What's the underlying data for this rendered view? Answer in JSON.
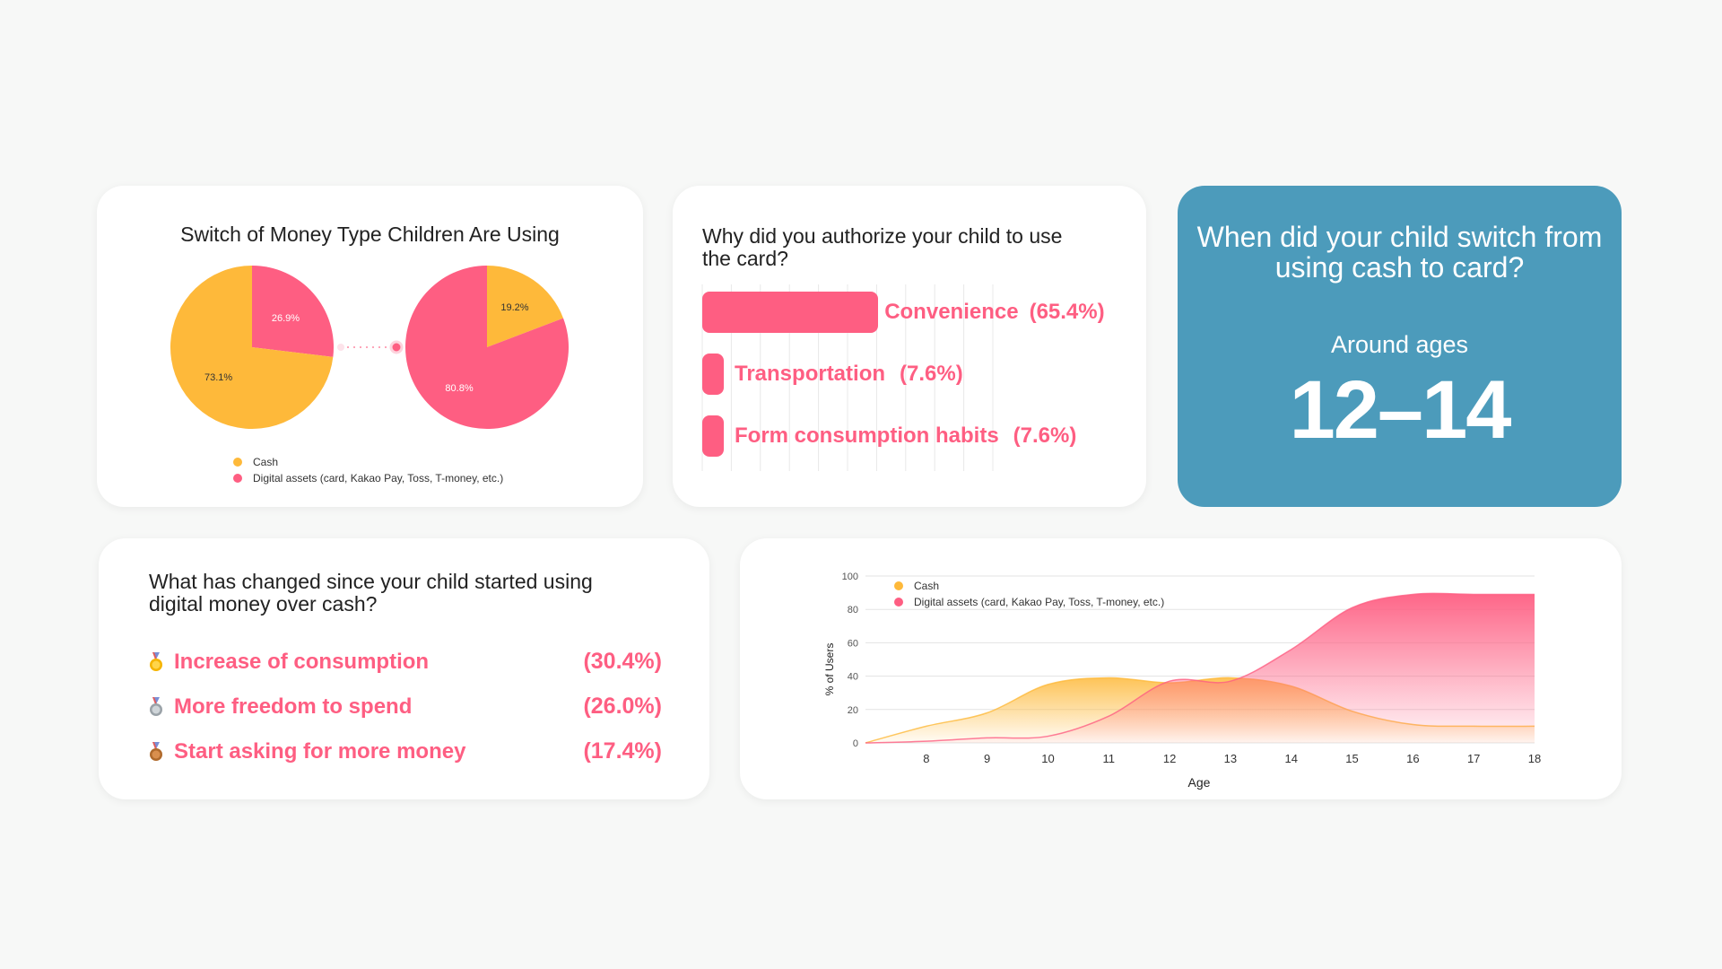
{
  "colors": {
    "cash": "#feb93a",
    "digital": "#fe5e82",
    "accent_blue": "#4c9bbb"
  },
  "pie_card": {
    "title": "Switch of Money Type Children Are Using",
    "legend": [
      {
        "label": "Cash",
        "color": "#feb93a"
      },
      {
        "label": "Digital assets (card, Kakao Pay, Toss, T-money, etc.)",
        "color": "#fe5e82"
      }
    ]
  },
  "reasons_card": {
    "title": "Why did you authorize your child to use the card?"
  },
  "switch_card": {
    "question": "When did your child switch from using cash to card?",
    "subtitle": "Around ages",
    "value": "12–14"
  },
  "changes_card": {
    "title": "What has changed since your child started using digital money over cash?",
    "items": [
      {
        "label": "Increase of consumption",
        "pct": "(30.4%)",
        "medal": "gold"
      },
      {
        "label": "More freedom to spend",
        "pct": "(26.0%)",
        "medal": "silver"
      },
      {
        "label": "Start asking for more money",
        "pct": "(17.4%)",
        "medal": "bronze"
      }
    ]
  },
  "chart_data": [
    {
      "type": "pie",
      "title": "Switch of Money Type Children Are Using (before)",
      "slices": [
        {
          "label": "Cash",
          "value": 73.1,
          "text": "73.1%"
        },
        {
          "label": "Digital assets (card, Kakao Pay, Toss, T-money, etc.)",
          "value": 26.9,
          "text": "26.9%"
        }
      ]
    },
    {
      "type": "pie",
      "title": "Switch of Money Type Children Are Using (after)",
      "slices": [
        {
          "label": "Cash",
          "value": 19.2,
          "text": "19.2%"
        },
        {
          "label": "Digital assets (card, Kakao Pay, Toss, T-money, etc.)",
          "value": 80.8,
          "text": "80.8%"
        }
      ]
    },
    {
      "type": "bar",
      "orientation": "horizontal",
      "title": "Why did you authorize your child to use the card?",
      "categories": [
        "Convenience",
        "Transportation",
        "Form consumption habits"
      ],
      "values": [
        65.4,
        7.6,
        7.6
      ],
      "value_labels": [
        "(65.4%)",
        "(7.6%)",
        "(7.6%)"
      ],
      "xlim": [
        0,
        100
      ]
    },
    {
      "type": "area",
      "title": "",
      "xlabel": "Age",
      "ylabel": "% of Users",
      "x": [
        7,
        8,
        9,
        10,
        11,
        12,
        13,
        14,
        15,
        16,
        17,
        18
      ],
      "x_ticks": [
        "8",
        "9",
        "10",
        "11",
        "12",
        "13",
        "14",
        "15",
        "16",
        "17",
        "18"
      ],
      "y_ticks": [
        "0",
        "20",
        "40",
        "60",
        "80",
        "100"
      ],
      "ylim": [
        0,
        100
      ],
      "grid": true,
      "legend_position": "top-left",
      "series": [
        {
          "name": "Cash",
          "color": "#feb93a",
          "values": [
            0,
            10,
            18,
            35,
            39,
            36,
            39,
            34,
            19,
            11,
            10,
            10
          ]
        },
        {
          "name": "Digital assets (card, Kakao Pay, Toss, T-money, etc.)",
          "color": "#fe5e82",
          "values": [
            0,
            1,
            3,
            4,
            16,
            37,
            37,
            56,
            81,
            89,
            89,
            89
          ]
        }
      ]
    }
  ]
}
